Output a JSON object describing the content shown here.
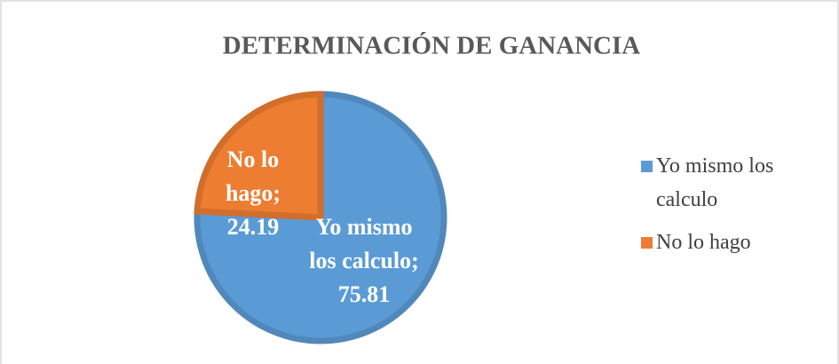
{
  "chart_data": {
    "type": "pie",
    "title": "DETERMINACIÓN DE GANANCIA",
    "categories": [
      "Yo mismo los calculo",
      "No lo hago"
    ],
    "values": [
      75.81,
      24.19
    ],
    "value_labels": [
      "Yo mismo los calculo; 75.81",
      "No lo hago; 24.19"
    ],
    "colors": [
      "#5b9bd5",
      "#ed7d31"
    ],
    "legend": "right"
  }
}
